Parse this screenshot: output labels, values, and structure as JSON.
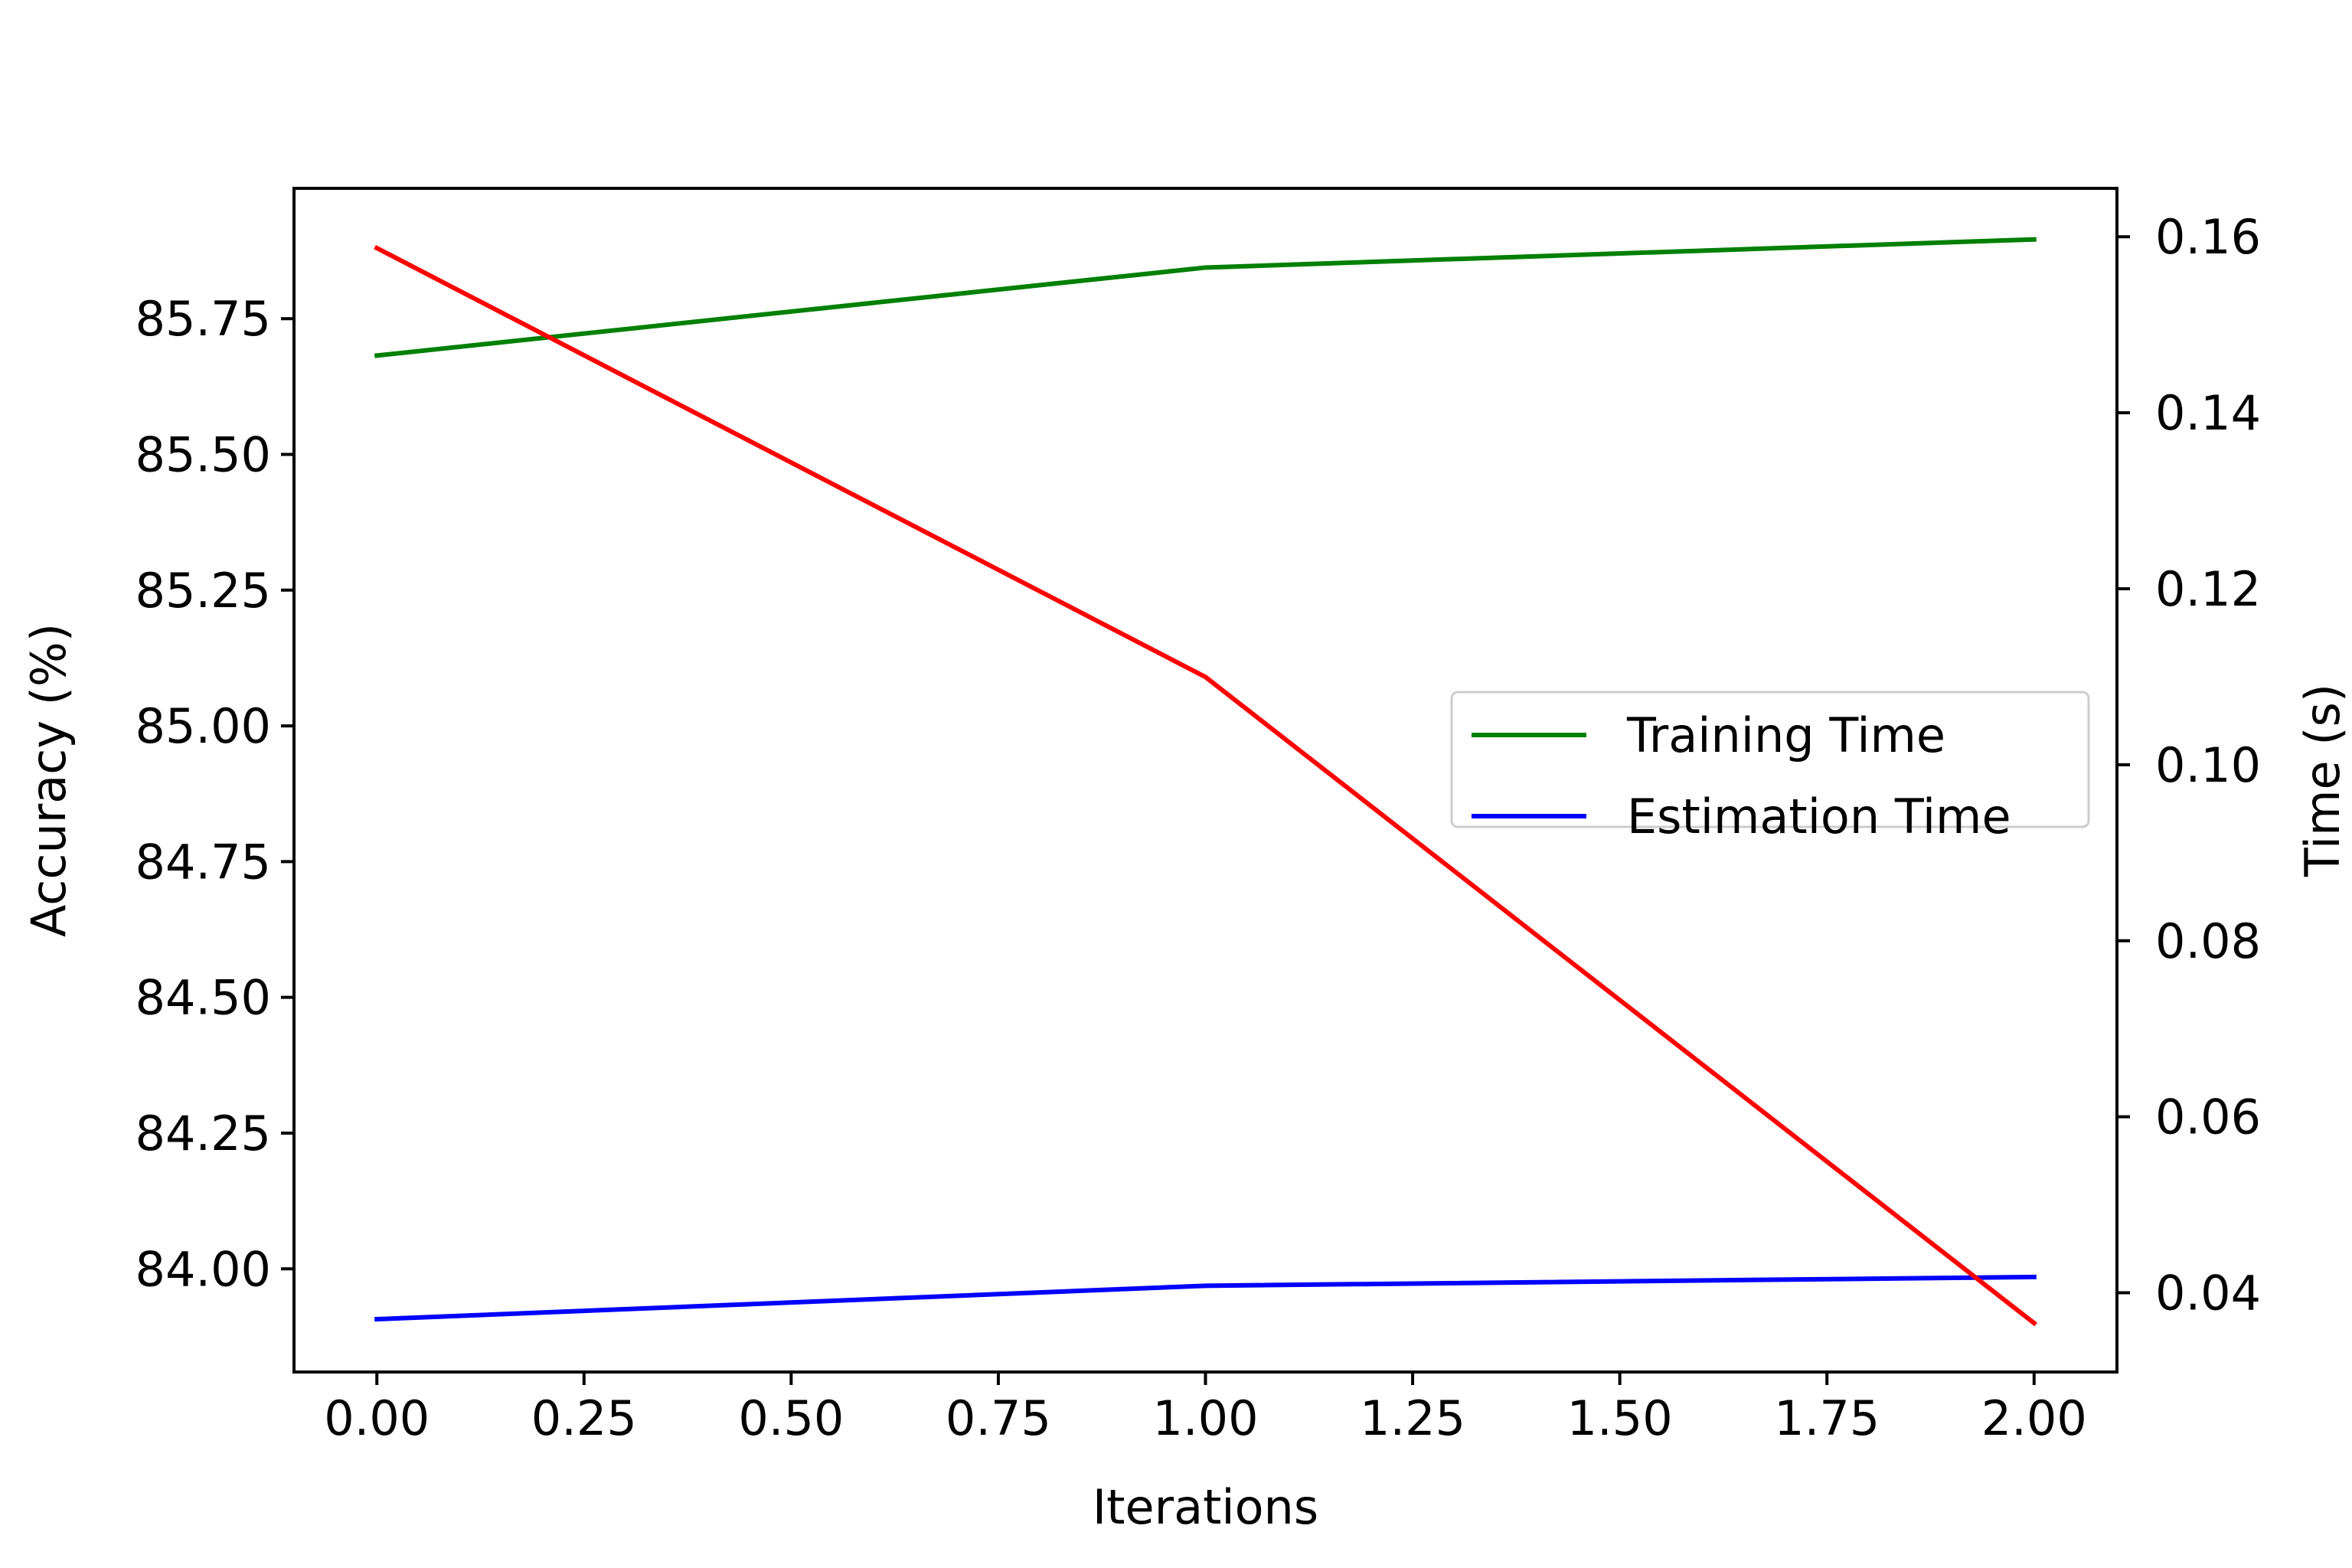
{
  "chart_data": {
    "type": "line",
    "xlabel": "Iterations",
    "ylabel_left": "Accuracy (%)",
    "ylabel_right": "Time (s)",
    "x": [
      0,
      1,
      2
    ],
    "xlim": [
      -0.1,
      2.1
    ],
    "x_ticks": [
      0,
      0.25,
      0.5,
      0.75,
      1.0,
      1.25,
      1.5,
      1.75,
      2.0
    ],
    "x_tick_labels": [
      "0.00",
      "0.25",
      "0.50",
      "0.75",
      "1.00",
      "1.25",
      "1.50",
      "1.75",
      "2.00"
    ],
    "ylim_left": [
      83.81,
      85.99
    ],
    "y_ticks_left": [
      84.0,
      84.25,
      84.5,
      84.75,
      85.0,
      85.25,
      85.5,
      85.75
    ],
    "y_tick_labels_left": [
      "84.00",
      "84.25",
      "84.50",
      "84.75",
      "85.00",
      "85.25",
      "85.50",
      "85.75"
    ],
    "ylim_right": [
      0.031,
      0.1655
    ],
    "y_ticks_right": [
      0.04,
      0.06,
      0.08,
      0.1,
      0.12,
      0.14,
      0.16
    ],
    "y_tick_labels_right": [
      "0.04",
      "0.06",
      "0.08",
      "0.10",
      "0.12",
      "0.14",
      "0.16"
    ],
    "legend_position": "center-right",
    "series": [
      {
        "name": "Training Time",
        "axis": "right",
        "color": "#008000",
        "values": [
          0.1465,
          0.1565,
          0.1597
        ]
      },
      {
        "name": "Estimation Time",
        "axis": "right",
        "color": "#0000ff",
        "values": [
          0.037,
          0.0408,
          0.0418
        ]
      },
      {
        "name": "",
        "axis": "left",
        "color": "#ff0000",
        "values": [
          85.88,
          85.09,
          83.9
        ]
      }
    ]
  }
}
